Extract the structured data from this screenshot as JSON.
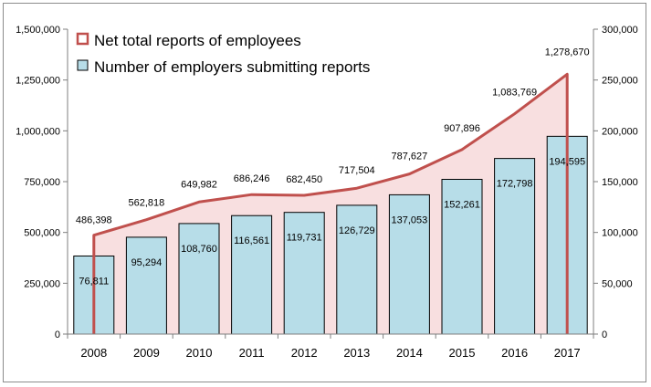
{
  "chart_data": {
    "type": "bar",
    "categories": [
      "2008",
      "2009",
      "2010",
      "2011",
      "2012",
      "2013",
      "2014",
      "2015",
      "2016",
      "2017"
    ],
    "series": [
      {
        "name": "Net total reports of employees",
        "kind": "area",
        "axis": "left",
        "values": [
          486398,
          562818,
          649982,
          686246,
          682450,
          717504,
          787627,
          907896,
          1083769,
          1278670
        ],
        "labels": [
          "486,398",
          "562,818",
          "649,982",
          "686,246",
          "682,450",
          "717,504",
          "787,627",
          "907,896",
          "1,083,769",
          "1,278,670"
        ],
        "color": "#c0504d",
        "fill": "#f8dfe0"
      },
      {
        "name": "Number of employers submitting reports",
        "kind": "bar",
        "axis": "right",
        "values": [
          76811,
          95294,
          108760,
          116561,
          119731,
          126729,
          137053,
          152261,
          172798,
          194595
        ],
        "labels": [
          "76,811",
          "95,294",
          "108,760",
          "116,561",
          "119,731",
          "126,729",
          "137,053",
          "152,261",
          "172,798",
          "194,595"
        ],
        "color": "#b7dde8"
      }
    ],
    "y_left": {
      "ylim": [
        0,
        1500000
      ],
      "ticks": [
        "0",
        "250,000",
        "500,000",
        "750,000",
        "1,000,000",
        "1,250,000",
        "1,500,000"
      ]
    },
    "y_right": {
      "ylim": [
        0,
        300000
      ],
      "ticks": [
        "0",
        "50,000",
        "100,000",
        "150,000",
        "200,000",
        "250,000",
        "300,000"
      ]
    },
    "legend_position": "top-left",
    "grid": false
  }
}
